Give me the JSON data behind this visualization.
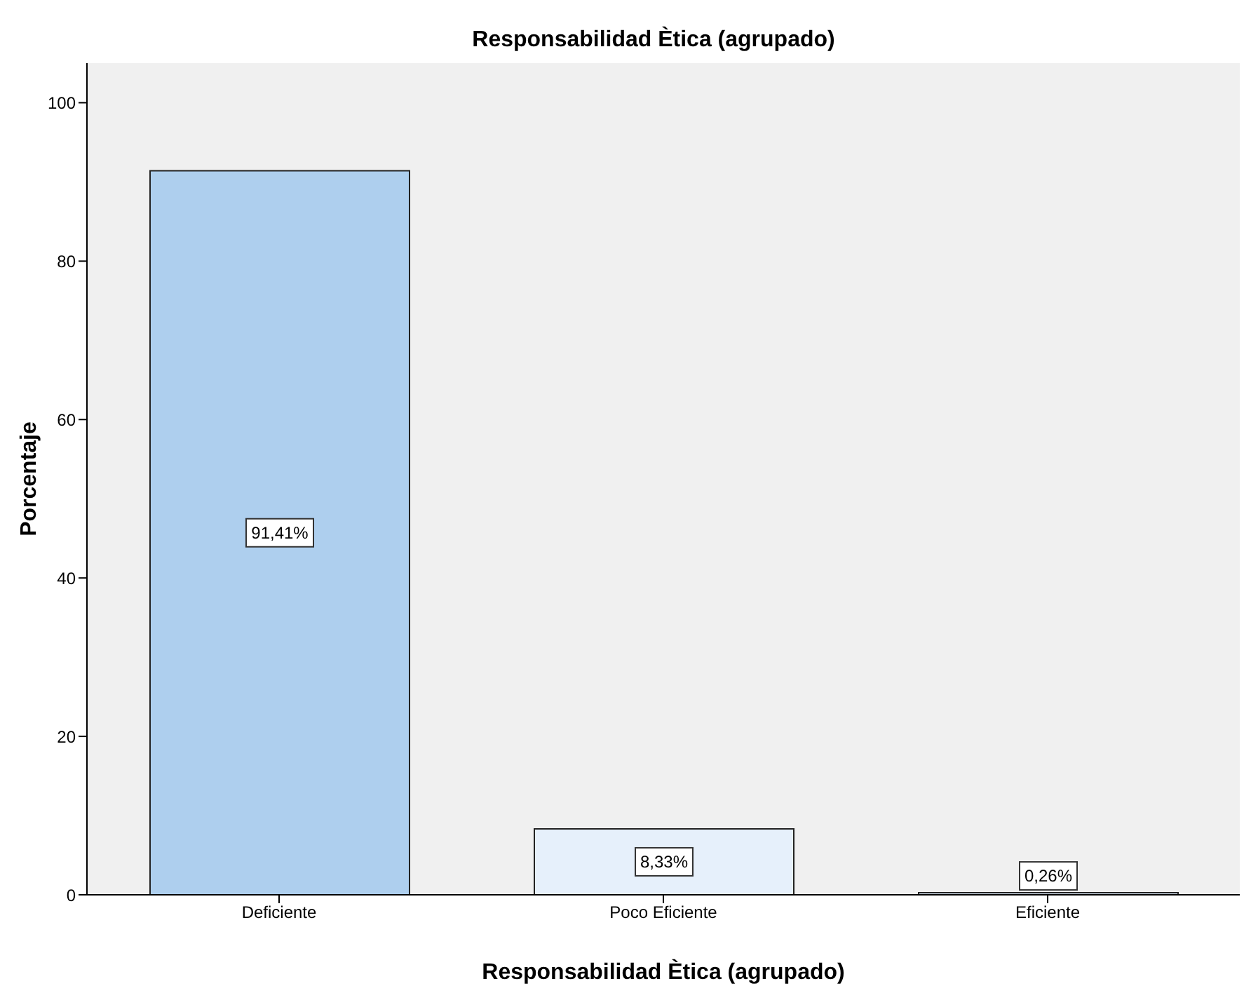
{
  "chart_data": {
    "type": "bar",
    "title": "Responsabilidad Ètica (agrupado)",
    "xlabel": "Responsabilidad Ètica (agrupado)",
    "ylabel": "Porcentaje",
    "categories": [
      "Deficiente",
      "Poco Eficiente",
      "Eficiente"
    ],
    "values": [
      91.41,
      8.33,
      0.26
    ],
    "colors": [
      "#aecfee",
      "#e6f0fb",
      "#dbe8f6"
    ],
    "value_labels": [
      "91,41%",
      "8,33%",
      "0,26%"
    ],
    "ylim": [
      0,
      105
    ],
    "yticks": [
      0,
      20,
      40,
      60,
      80,
      100
    ],
    "grid": false
  }
}
